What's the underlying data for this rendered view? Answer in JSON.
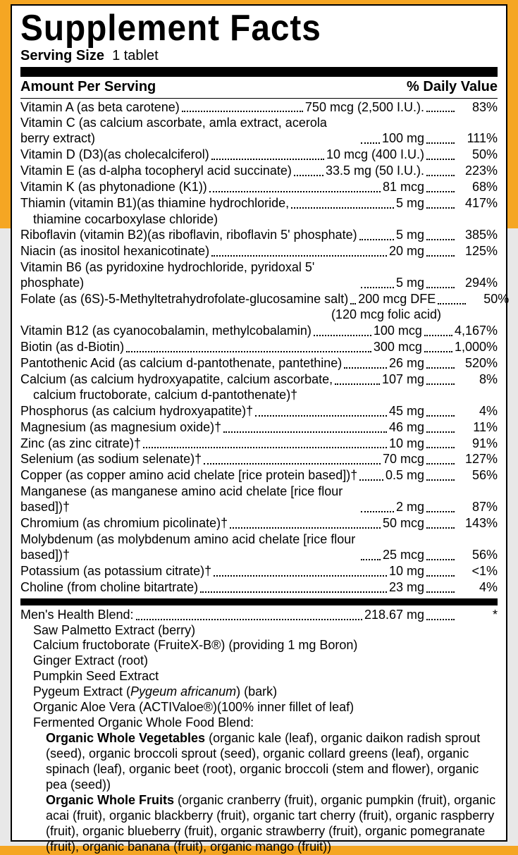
{
  "title": "Supplement Facts",
  "serving_label": "Serving Size",
  "serving_value": "1 tablet",
  "col_left": "Amount Per Serving",
  "col_right": "% Daily Value",
  "nutrients": [
    {
      "name": "Vitamin A (as beta carotene)",
      "amt": "750 mcg (2,500 I.U.).",
      "dv": "83%"
    },
    {
      "name": "Vitamin C (as calcium ascorbate, amla extract, acerola berry extract)",
      "amt": "100 mg",
      "dv": "111%"
    },
    {
      "name": "Vitamin D (D3)(as cholecalciferol)",
      "amt": "10 mcg (400 I.U.)",
      "dv": "50%"
    },
    {
      "name": "Vitamin E (as d-alpha tocopheryl acid succinate)",
      "amt": "33.5 mg (50 I.U.).",
      "dv": "223%"
    },
    {
      "name": "Vitamin K (as phytonadione (K1))",
      "amt": "81 mcg",
      "dv": "68%"
    },
    {
      "name": "Thiamin (vitamin B1)(as thiamine hydrochloride,",
      "cont": "thiamine cocarboxylase chloride)",
      "amt": "5 mg",
      "dv": "417%"
    },
    {
      "name": "Riboflavin (vitamin B2)(as riboflavin, riboflavin 5' phosphate)",
      "amt": "5 mg",
      "dv": "385%"
    },
    {
      "name": "Niacin (as inositol hexanicotinate)",
      "amt": "20 mg",
      "dv": "125%"
    },
    {
      "name": "Vitamin B6 (as pyridoxine hydrochloride, pyridoxal 5' phosphate)",
      "amt": "5 mg",
      "dv": "294%"
    },
    {
      "name": "Folate (as (6S)-5-Methyltetrahydrofolate-glucosamine salt)",
      "amt": "200 mcg DFE",
      "dv": "50%",
      "note": "(120 mcg folic acid)"
    },
    {
      "name": "Vitamin B12 (as cyanocobalamin, methylcobalamin)",
      "amt": "100 mcg",
      "dv": "4,167%"
    },
    {
      "name": "Biotin (as d-Biotin)",
      "amt": "300 mcg",
      "dv": "1,000%"
    },
    {
      "name": "Pantothenic Acid (as calcium d-pantothenate, pantethine)",
      "amt": "26 mg",
      "dv": "520%"
    },
    {
      "name": "Calcium (as calcium hydroxyapatite, calcium ascorbate,",
      "cont": "calcium fructoborate, calcium d-pantothenate)†",
      "amt": "107 mg",
      "dv": "8%"
    },
    {
      "name": "Phosphorus (as calcium hydroxyapatite)†",
      "amt": "45 mg",
      "dv": "4%"
    },
    {
      "name": "Magnesium (as magnesium oxide)†",
      "amt": "46 mg",
      "dv": "11%"
    },
    {
      "name": "Zinc (as zinc citrate)†",
      "amt": "10 mg",
      "dv": "91%"
    },
    {
      "name": "Selenium (as sodium selenate)†",
      "amt": "70 mcg",
      "dv": "127%"
    },
    {
      "name": "Copper (as copper amino acid chelate [rice protein based])†",
      "amt": "0.5 mg",
      "dv": "56%"
    },
    {
      "name": "Manganese (as manganese amino acid chelate [rice flour based])†",
      "amt": "2 mg",
      "dv": "87%"
    },
    {
      "name": "Chromium (as chromium picolinate)†",
      "amt": "50 mcg",
      "dv": "143%"
    },
    {
      "name": "Molybdenum (as molybdenum amino acid chelate [rice flour based])†",
      "amt": "25 mcg",
      "dv": "56%"
    },
    {
      "name": "Potassium (as potassium citrate)†",
      "amt": "10 mg",
      "dv": "<1%"
    },
    {
      "name": "Choline (from choline bitartrate)",
      "amt": "23 mg",
      "dv": "4%"
    }
  ],
  "blend": {
    "name": "Men's Health Blend:",
    "amt": "218.67 mg",
    "dv": "*",
    "items": [
      "Saw Palmetto Extract (berry)",
      "Calcium fructoborate (FruiteX-B®) (providing 1 mg Boron)",
      "Ginger Extract (root)",
      "Pumpkin Seed Extract"
    ],
    "pygeum_pre": "Pygeum Extract (",
    "pygeum_it": "Pygeum africanum",
    "pygeum_post": ") (bark)",
    "aloe": "Organic Aloe Vera (ACTIValoe®)(100% inner fillet of leaf)",
    "fermented": "Fermented Organic Whole Food Blend:",
    "veg_label": "Organic Whole Vegetables",
    "veg_text": " (organic kale (leaf), organic daikon radish sprout (seed), organic broccoli sprout (seed), organic collard greens (leaf), organic spinach (leaf), organic beet (root), organic broccoli (stem and flower), organic pea (seed))",
    "fruit_label": "Organic Whole Fruits",
    "fruit_text": " (organic cranberry (fruit), organic pumpkin (fruit), organic acai (fruit), organic blackberry (fruit), organic tart cherry (fruit), organic raspberry (fruit), organic blueberry (fruit), organic strawberry (fruit), organic pomegranate (fruit), organic banana (fruit), organic mango (fruit))"
  }
}
